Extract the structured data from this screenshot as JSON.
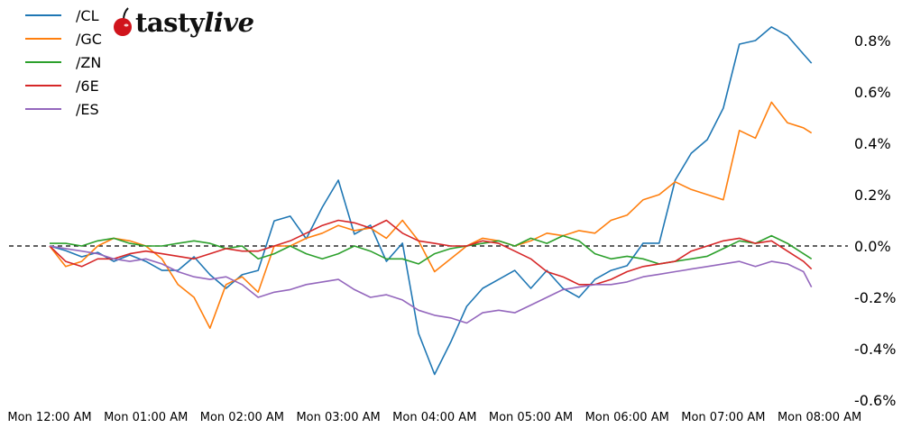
{
  "logo": {
    "brand": "tastylive",
    "part1": "tasty",
    "part2": "live",
    "cherry_color": "#d0141c"
  },
  "chart_data": {
    "type": "line",
    "title": "",
    "xlabel": "",
    "ylabel": "",
    "ylim": [
      -0.6,
      0.9
    ],
    "y_unit": "%",
    "y_axis_side": "right",
    "yticks": [
      -0.6,
      -0.4,
      -0.2,
      0.0,
      0.2,
      0.4,
      0.6,
      0.8
    ],
    "ytick_labels": [
      "-0.6%",
      "-0.4%",
      "-0.2%",
      "0.0%",
      "0.2%",
      "0.4%",
      "0.6%",
      "0.8%"
    ],
    "xticks": [
      "00:00",
      "01:00",
      "02:00",
      "03:00",
      "04:00",
      "05:00",
      "06:00",
      "07:00",
      "08:00"
    ],
    "xtick_labels": [
      "Mon 12:00 AM",
      "Mon 01:00 AM",
      "Mon 02:00 AM",
      "Mon 03:00 AM",
      "Mon 04:00 AM",
      "Mon 05:00 AM",
      "Mon 06:00 AM",
      "Mon 07:00 AM",
      "Mon 08:00 AM"
    ],
    "grid": false,
    "reference_line": {
      "y": 0.0,
      "style": "dashed",
      "color": "#000000"
    },
    "legend_placement": "top-left",
    "x": [
      "00:00",
      "00:10",
      "00:20",
      "00:30",
      "00:40",
      "00:50",
      "01:00",
      "01:10",
      "01:20",
      "01:30",
      "01:40",
      "01:50",
      "02:00",
      "02:10",
      "02:20",
      "02:30",
      "02:40",
      "02:50",
      "03:00",
      "03:10",
      "03:20",
      "03:30",
      "03:40",
      "03:50",
      "04:00",
      "04:10",
      "04:20",
      "04:30",
      "04:40",
      "04:50",
      "05:00",
      "05:10",
      "05:20",
      "05:30",
      "05:40",
      "05:50",
      "06:00",
      "06:10",
      "06:20",
      "06:30",
      "06:40",
      "06:50",
      "07:00",
      "07:10",
      "07:20",
      "07:30",
      "07:40",
      "07:50",
      "07:55"
    ],
    "series": [
      {
        "name": "/CL",
        "color": "#1f77b4",
        "values": [
          0,
          -0.018,
          -0.042,
          -0.025,
          -0.06,
          -0.035,
          -0.06,
          -0.095,
          -0.095,
          -0.042,
          -0.112,
          -0.165,
          -0.112,
          -0.095,
          0.098,
          0.116,
          0.028,
          0.151,
          0.256,
          0.046,
          0.081,
          -0.06,
          0.011,
          -0.34,
          -0.5,
          -0.375,
          -0.235,
          -0.165,
          -0.13,
          -0.095,
          -0.165,
          -0.095,
          -0.165,
          -0.2,
          -0.13,
          -0.095,
          -0.077,
          0.011,
          0.011,
          0.256,
          0.361,
          0.414,
          0.537,
          0.786,
          0.8,
          0.853,
          0.819,
          0.747,
          0.712
        ]
      },
      {
        "name": "/GC",
        "color": "#ff7f0e",
        "values": [
          0,
          -0.08,
          -0.06,
          0,
          0.03,
          0.02,
          0,
          -0.05,
          -0.15,
          -0.2,
          -0.32,
          -0.15,
          -0.12,
          -0.18,
          0,
          0,
          0.03,
          0.05,
          0.08,
          0.06,
          0.07,
          0.03,
          0.1,
          0.02,
          -0.1,
          -0.05,
          0,
          0.03,
          0.02,
          0,
          0.02,
          0.05,
          0.04,
          0.06,
          0.05,
          0.1,
          0.12,
          0.18,
          0.2,
          0.25,
          0.22,
          0.2,
          0.18,
          0.45,
          0.42,
          0.56,
          0.48,
          0.46,
          0.44
        ]
      },
      {
        "name": "/ZN",
        "color": "#2ca02c",
        "values": [
          0.01,
          0.01,
          0,
          0.02,
          0.03,
          0.01,
          0,
          0,
          0.01,
          0.02,
          0.01,
          -0.01,
          0,
          -0.05,
          -0.03,
          0,
          -0.03,
          -0.05,
          -0.03,
          0,
          -0.02,
          -0.05,
          -0.05,
          -0.07,
          -0.03,
          -0.01,
          0,
          0.01,
          0.02,
          0,
          0.03,
          0.01,
          0.04,
          0.02,
          -0.03,
          -0.05,
          -0.04,
          -0.05,
          -0.07,
          -0.06,
          -0.05,
          -0.04,
          -0.01,
          0.02,
          0.01,
          0.04,
          0.01,
          -0.03,
          -0.05
        ]
      },
      {
        "name": "/6E",
        "color": "#d62728",
        "values": [
          0,
          -0.06,
          -0.08,
          -0.05,
          -0.05,
          -0.03,
          -0.02,
          -0.03,
          -0.04,
          -0.05,
          -0.03,
          -0.01,
          -0.02,
          -0.02,
          0,
          0.02,
          0.05,
          0.08,
          0.1,
          0.09,
          0.07,
          0.1,
          0.05,
          0.02,
          0.01,
          0,
          0,
          0.02,
          0.01,
          -0.02,
          -0.05,
          -0.1,
          -0.12,
          -0.15,
          -0.15,
          -0.13,
          -0.1,
          -0.08,
          -0.07,
          -0.06,
          -0.02,
          0,
          0.02,
          0.03,
          0.01,
          0.02,
          -0.02,
          -0.06,
          -0.09
        ]
      },
      {
        "name": "/ES",
        "color": "#9467bd",
        "values": [
          0,
          -0.01,
          -0.02,
          -0.03,
          -0.05,
          -0.06,
          -0.05,
          -0.07,
          -0.1,
          -0.12,
          -0.13,
          -0.12,
          -0.15,
          -0.2,
          -0.18,
          -0.17,
          -0.15,
          -0.14,
          -0.13,
          -0.17,
          -0.2,
          -0.19,
          -0.21,
          -0.25,
          -0.27,
          -0.28,
          -0.3,
          -0.26,
          -0.25,
          -0.26,
          -0.23,
          -0.2,
          -0.17,
          -0.16,
          -0.15,
          -0.15,
          -0.14,
          -0.12,
          -0.11,
          -0.1,
          -0.09,
          -0.08,
          -0.07,
          -0.06,
          -0.08,
          -0.06,
          -0.07,
          -0.1,
          -0.16
        ]
      }
    ]
  }
}
